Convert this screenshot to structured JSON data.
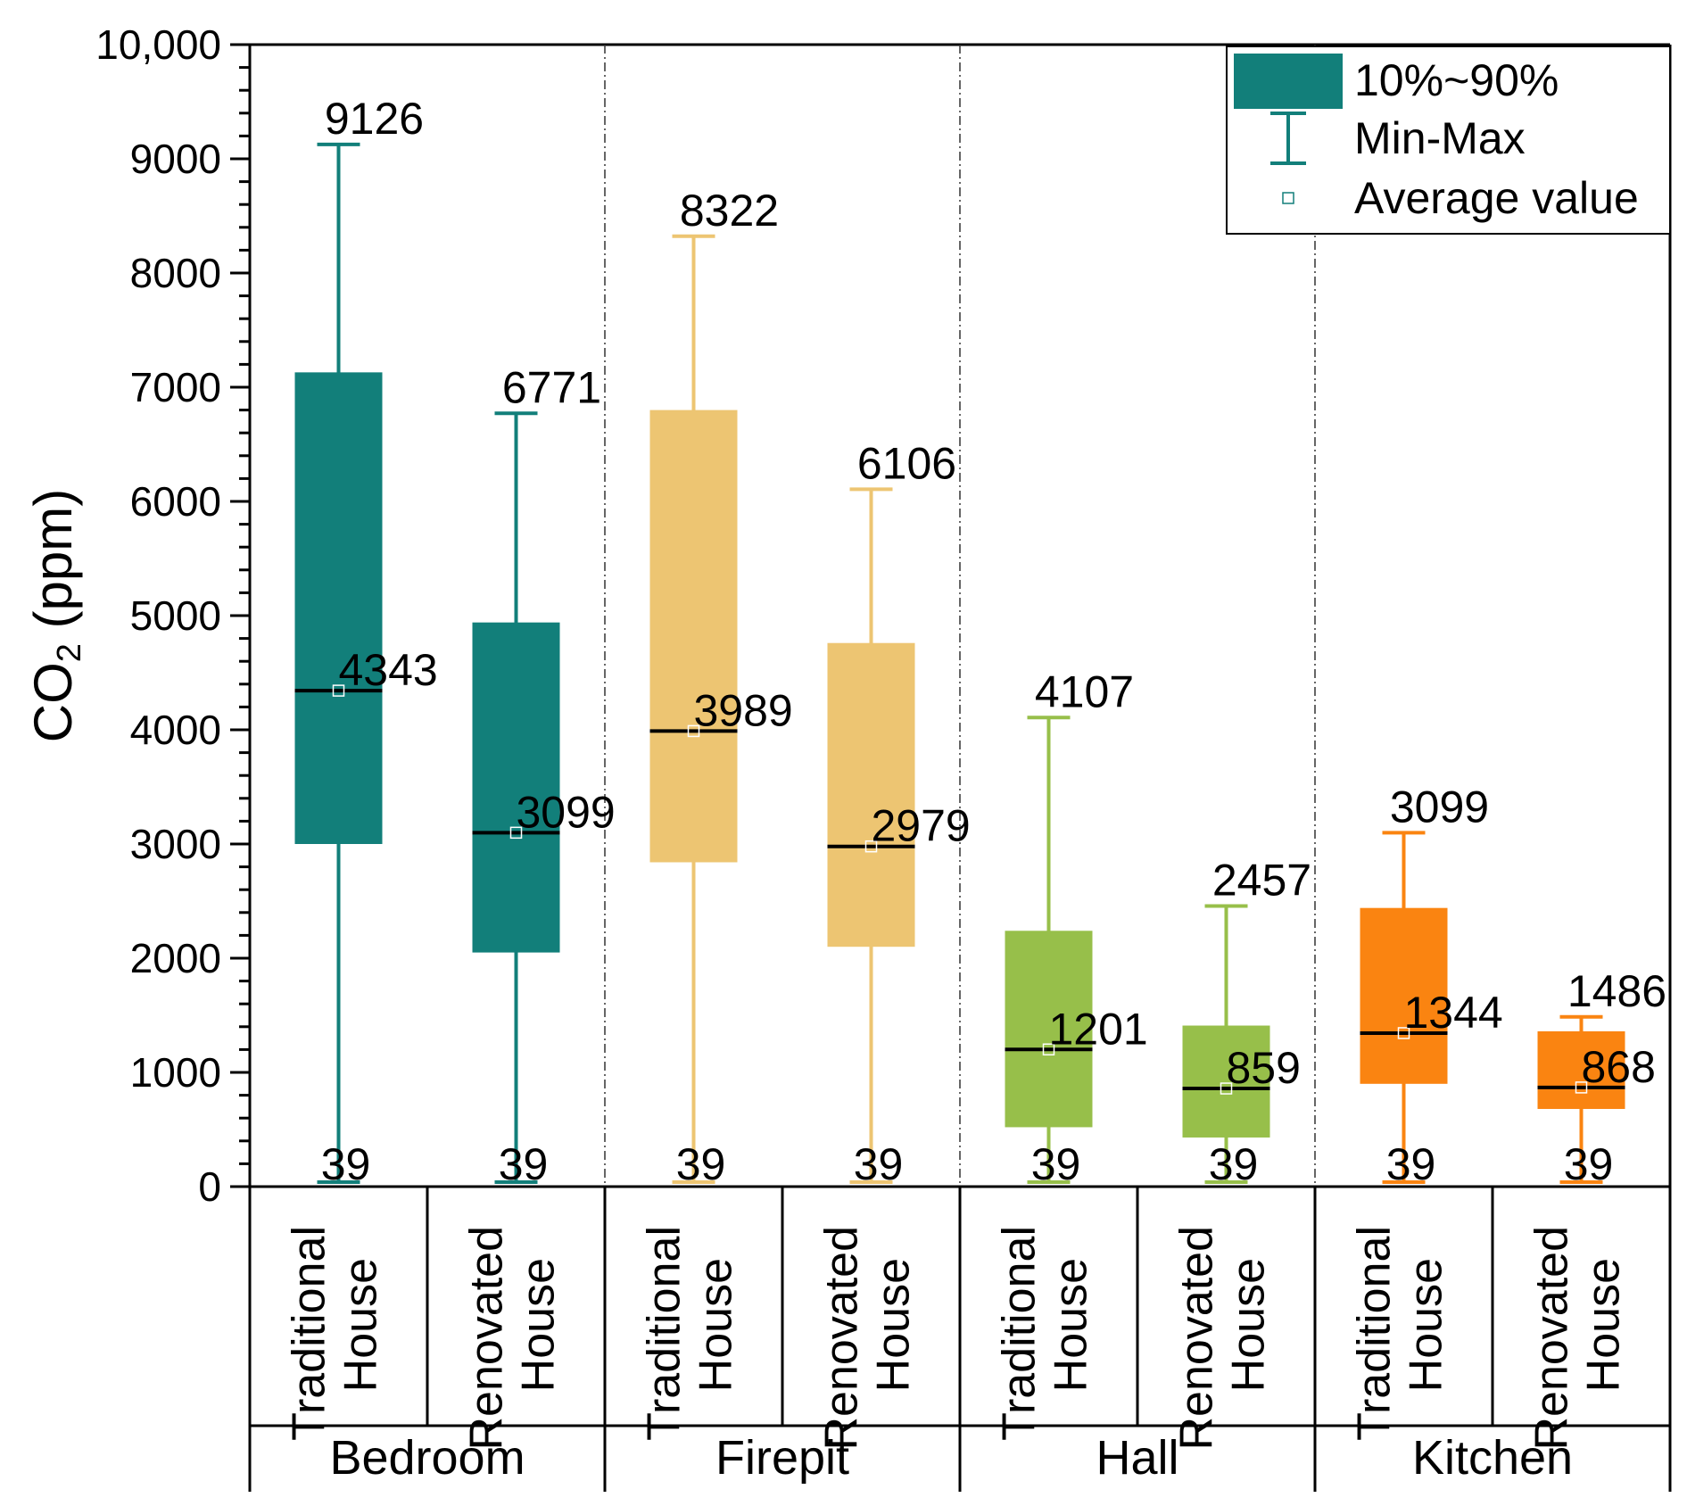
{
  "chart_data": {
    "type": "box",
    "ylabel_main": "CO",
    "ylabel_sub": "2",
    "ylabel_unit": " (ppm)",
    "ylim": [
      0,
      10000
    ],
    "yticks": [
      "0",
      "1000",
      "2000",
      "3000",
      "4000",
      "5000",
      "6000",
      "7000",
      "8000",
      "9000",
      "10,000"
    ],
    "ytick_values": [
      0,
      1000,
      2000,
      3000,
      4000,
      5000,
      6000,
      7000,
      8000,
      9000,
      10000
    ],
    "groups": [
      {
        "name": "Bedroom",
        "color": "#127F7A",
        "boxes": [
          {
            "label_line1": "Traditional",
            "label_line2": "House",
            "min": 39,
            "p10": 3000,
            "avg": 4343,
            "p90": 7130,
            "max": 9126,
            "min_label": "39",
            "avg_label": "4343",
            "max_label": "9126"
          },
          {
            "label_line1": "Renovated",
            "label_line2": "House",
            "min": 39,
            "p10": 2050,
            "avg": 3099,
            "p90": 4940,
            "max": 6771,
            "min_label": "39",
            "avg_label": "3099",
            "max_label": "6771"
          }
        ]
      },
      {
        "name": "Firepit",
        "color": "#EDC572",
        "boxes": [
          {
            "label_line1": "Traditional",
            "label_line2": "House",
            "min": 39,
            "p10": 2840,
            "avg": 3989,
            "p90": 6800,
            "max": 8322,
            "min_label": "39",
            "avg_label": "3989",
            "max_label": "8322"
          },
          {
            "label_line1": "Renovated",
            "label_line2": "House",
            "min": 39,
            "p10": 2100,
            "avg": 2979,
            "p90": 4760,
            "max": 6106,
            "min_label": "39",
            "avg_label": "2979",
            "max_label": "6106"
          }
        ]
      },
      {
        "name": "Hall",
        "color": "#97BF4A",
        "boxes": [
          {
            "label_line1": "Traditional",
            "label_line2": "House",
            "min": 39,
            "p10": 520,
            "avg": 1201,
            "p90": 2240,
            "max": 4107,
            "min_label": "39",
            "avg_label": "1201",
            "max_label": "4107"
          },
          {
            "label_line1": "Renovated",
            "label_line2": "House",
            "min": 39,
            "p10": 430,
            "avg": 859,
            "p90": 1410,
            "max": 2457,
            "min_label": "39",
            "avg_label": "859",
            "max_label": "2457"
          }
        ]
      },
      {
        "name": "Kitchen",
        "color": "#FA8411",
        "boxes": [
          {
            "label_line1": "Traditional",
            "label_line2": "House",
            "min": 39,
            "p10": 900,
            "avg": 1344,
            "p90": 2440,
            "max": 3099,
            "min_label": "39",
            "avg_label": "1344",
            "max_label": "3099"
          },
          {
            "label_line1": "Renovated",
            "label_line2": "House",
            "min": 39,
            "p10": 680,
            "avg": 868,
            "p90": 1360,
            "max": 1486,
            "min_label": "39",
            "avg_label": "868",
            "max_label": "1486"
          }
        ]
      }
    ],
    "legend": {
      "position": "top-right",
      "items": [
        {
          "key": "box",
          "label": "10%~90%",
          "color": "#127F7A"
        },
        {
          "key": "whisker",
          "label": "Min-Max",
          "color": "#127F7A"
        },
        {
          "key": "mean",
          "label": "Average value",
          "color": "#127F7A"
        }
      ]
    }
  }
}
